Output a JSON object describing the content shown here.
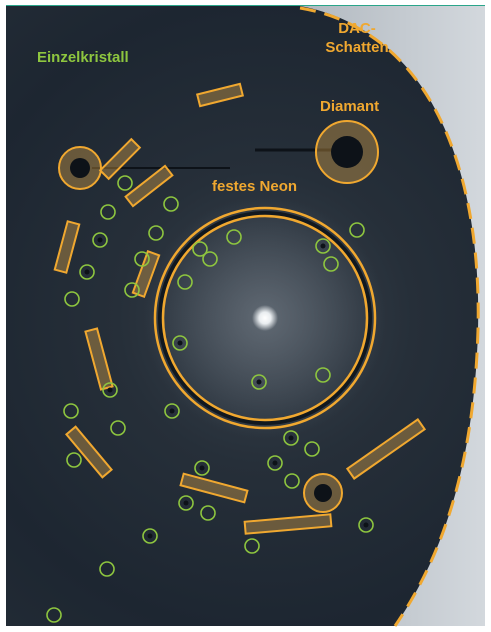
{
  "labels": {
    "single_crystal": "Einzelkristall",
    "dac_shadow_line1": "DAC-",
    "dac_shadow_line2": "Schatten",
    "diamond": "Diamant",
    "solid_neon": "festes Neon"
  },
  "colors": {
    "crystal_label": "#8ec63f",
    "crystal_circle": "#8ec63f",
    "annotation": "#f0a830",
    "annotation_fill": "#f2b24a",
    "top_rule": "#2aa58a",
    "detector_dark": "#1c2530",
    "shadow_light": "#c6ccd2"
  }
}
